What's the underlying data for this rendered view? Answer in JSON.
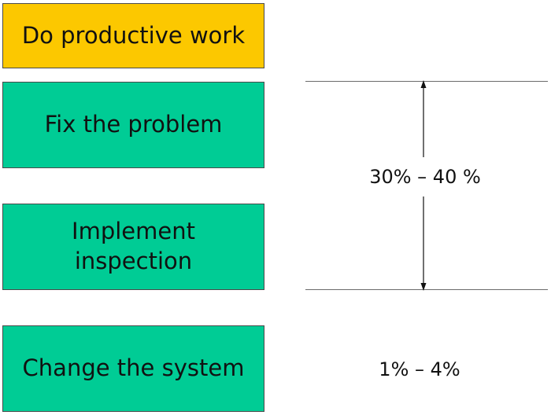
{
  "steps": [
    {
      "label": "Do productive work",
      "color": "#fcc800"
    },
    {
      "label": "Fix the problem",
      "color": "#00cc95"
    },
    {
      "label": "Implement\ninspection",
      "color": "#00cc95"
    },
    {
      "label": "Change the system",
      "color": "#00cc95"
    }
  ],
  "ranges": [
    {
      "label": "30% – 40 %"
    },
    {
      "label": "1% – 4%"
    }
  ],
  "colors": {
    "line": "#6b6b6b",
    "arrow": "#111111"
  }
}
